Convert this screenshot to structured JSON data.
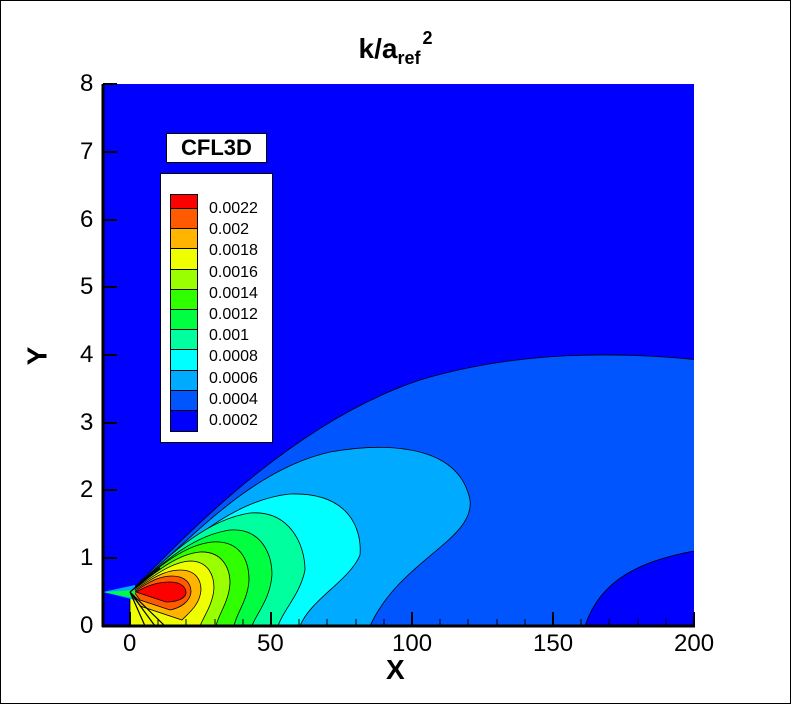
{
  "title": {
    "main": "k/a",
    "sub": "ref",
    "sup": "2"
  },
  "legend_title": "CFL3D",
  "legend": {
    "levels": [
      "0.0022",
      "0.002",
      "0.0018",
      "0.0016",
      "0.0014",
      "0.0012",
      "0.001",
      "0.0008",
      "0.0006",
      "0.0004",
      "0.0002"
    ],
    "colors": [
      "#ff0000",
      "#ff5a00",
      "#ffb400",
      "#f0ff00",
      "#9aff00",
      "#30ff00",
      "#00ff40",
      "#00ff9e",
      "#00ffff",
      "#00aaff",
      "#0055ff",
      "#0000ff"
    ]
  },
  "axes": {
    "xlabel": "X",
    "ylabel": "Y",
    "xticks": [
      "0",
      "50",
      "100",
      "150",
      "200"
    ],
    "yticks": [
      "0",
      "1",
      "2",
      "3",
      "4",
      "5",
      "6",
      "7",
      "8"
    ]
  },
  "chart_data": {
    "type": "heatmap",
    "subtype": "filled contour",
    "title": "k/a_ref^2",
    "xlabel": "X",
    "ylabel": "Y",
    "xlim": [
      -10,
      200
    ],
    "ylim": [
      0,
      8
    ],
    "xticks": [
      0,
      50,
      100,
      150,
      200
    ],
    "yticks": [
      0,
      1,
      2,
      3,
      4,
      5,
      6,
      7,
      8
    ],
    "legend_title": "CFL3D",
    "contour_levels": [
      0.0002,
      0.0004,
      0.0006,
      0.0008,
      0.001,
      0.0012,
      0.0014,
      0.0016,
      0.0018,
      0.002,
      0.0022
    ],
    "colormap": "jet (blue to red)",
    "annotations": [
      "Peak k/a_ref^2 > 0.0022 near x≈5-15, y≈0.5",
      "0.0002 contour extends to y≈4 at x≈170",
      "0.0004 contour reaches y≈2.65 at x≈90",
      "0.0006 contour reaches y≈1.4 at x≈45"
    ]
  }
}
